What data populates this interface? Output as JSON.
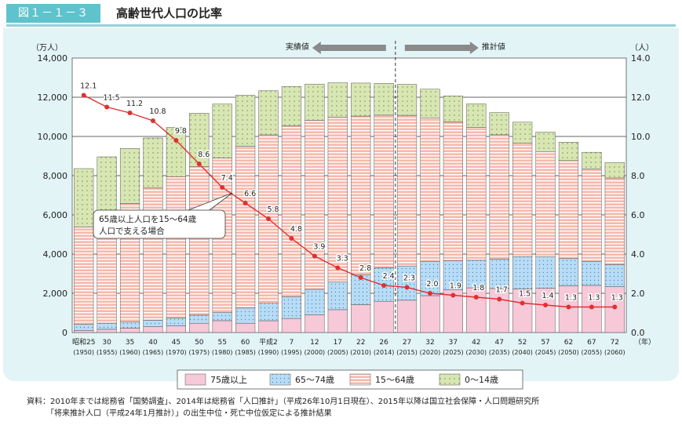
{
  "header": {
    "figure_number": "図１－１－３",
    "title": "高齢世代人口の比率"
  },
  "chart_data": {
    "type": "bar",
    "subtype": "stacked-bar-with-line",
    "left_axis_unit": "（万人）",
    "right_axis_unit": "（人）",
    "x_axis_unit": "（年）",
    "ylim_left": [
      0,
      14000
    ],
    "ylim_right": [
      0,
      14.0
    ],
    "y_ticks_left": [
      "0",
      "2,000",
      "4,000",
      "6,000",
      "8,000",
      "10,000",
      "12,000",
      "14,000"
    ],
    "y_ticks_right": [
      "0.0",
      "2.0",
      "4.0",
      "6.0",
      "8.0",
      "10.0",
      "12.0",
      "14.0"
    ],
    "categories": [
      "昭和25",
      "30",
      "35",
      "40",
      "45",
      "50",
      "55",
      "60",
      "平成2",
      "7",
      "12",
      "17",
      "22",
      "26",
      "27",
      "32",
      "37",
      "42",
      "47",
      "52",
      "57",
      "62",
      "67",
      "72"
    ],
    "categories_sub": [
      "(1950)",
      "(1955)",
      "(1960)",
      "(1965)",
      "(1970)",
      "(1975)",
      "(1980)",
      "(1985)",
      "(1990)",
      "(1995)",
      "(2000)",
      "(2005)",
      "(2010)",
      "(2014)",
      "(2015)",
      "(2020)",
      "(2025)",
      "(2030)",
      "(2035)",
      "(2040)",
      "(2045)",
      "(2050)",
      "(2055)",
      "(2060)"
    ],
    "series": [
      {
        "name": "75歳以上",
        "color": "#f7c8d8",
        "values": [
          107,
          163,
          224,
          306,
          338,
          470,
          602,
          471,
          599,
          717,
          901,
          1164,
          1419,
          1592,
          1646,
          1879,
          2179,
          2278,
          2245,
          2223,
          2257,
          2385,
          2401,
          2336
        ]
      },
      {
        "name": "65～74歳",
        "color": "#b8dcf5",
        "values": [
          309,
          312,
          311,
          318,
          398,
          417,
          416,
          776,
          892,
          1109,
          1301,
          1412,
          1517,
          1708,
          1749,
          1733,
          1479,
          1407,
          1498,
          1645,
          1600,
          1383,
          1225,
          1128
        ]
      },
      {
        "name": "15～64歳",
        "color": "#f7b8ac",
        "values": [
          4966,
          5473,
          6047,
          6744,
          7212,
          7581,
          7883,
          8251,
          8590,
          8717,
          8622,
          8409,
          8103,
          7785,
          7682,
          7341,
          7084,
          6773,
          6343,
          5787,
          5353,
          5001,
          4706,
          4418
        ]
      },
      {
        "name": "0～14歳",
        "color": "#d8e6b4",
        "values": [
          2979,
          3012,
          2807,
          2553,
          2515,
          2722,
          2751,
          2603,
          2249,
          2001,
          1847,
          1752,
          1684,
          1623,
          1583,
          1457,
          1324,
          1204,
          1129,
          1073,
          1012,
          939,
          861,
          791
        ]
      }
    ],
    "line": {
      "name": "65歳以上人口を15～64歳人口で支える場合",
      "color": "#e03030",
      "values": [
        12.1,
        11.5,
        11.2,
        10.8,
        9.8,
        8.6,
        7.4,
        6.6,
        5.8,
        4.8,
        3.9,
        3.3,
        2.8,
        2.4,
        2.3,
        2.0,
        1.9,
        1.8,
        1.7,
        1.5,
        1.4,
        1.3,
        1.3,
        1.3
      ],
      "labels": [
        "12.1",
        "11.5",
        "11.2",
        "10.8",
        "9.8",
        "8.6",
        "7.4",
        "6.6",
        "5.8",
        "4.8",
        "3.9",
        "3.3",
        "2.8",
        "2.4",
        "2.3",
        "2.0",
        "1.9",
        "1.8",
        "1.7",
        "1.5",
        "1.4",
        "1.3",
        "1.3",
        "1.3"
      ]
    },
    "annotation": {
      "line1": "65歳以上人口を15～64歳",
      "line2": "人口で支える場合"
    },
    "actual_label": "実績値",
    "projected_label": "推計値",
    "divider_after_index": 13,
    "legend_order": [
      "75歳以上",
      "65～74歳",
      "15～64歳",
      "0～14歳"
    ],
    "legend_placement": "bottom"
  },
  "source_note": {
    "line1": "資料：2010年までは総務省「国勢調査」、2014年は総務省「人口推計」（平成26年10月1日現在）、2015年以降は国立社会保障・人口問題研究所",
    "line2": "　　　「将来推計人口（平成24年1月推計）」の出生中位・死亡中位仮定による推計結果"
  }
}
